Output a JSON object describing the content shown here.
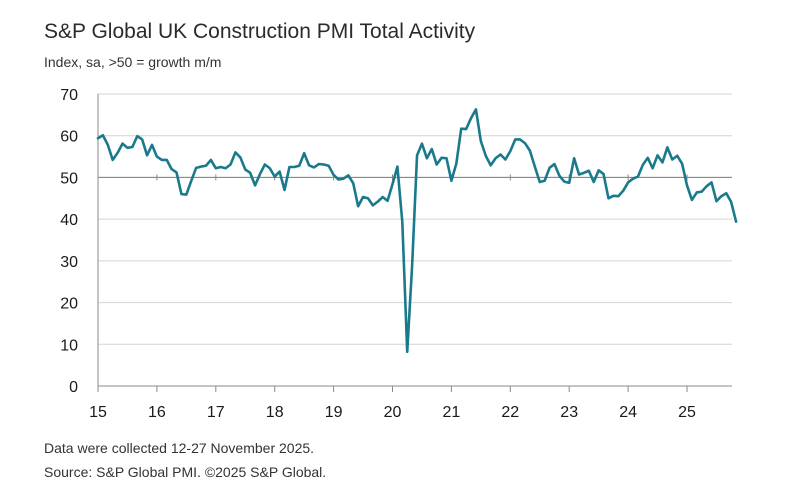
{
  "chart_data": {
    "type": "line",
    "title": "S&P Global UK Construction PMI Total Activity",
    "subtitle": "Index, sa, >50 = growth m/m",
    "xlabel": "",
    "ylabel": "",
    "ylim": [
      0,
      70
    ],
    "yticks": [
      0,
      10,
      20,
      30,
      40,
      50,
      60,
      70
    ],
    "xticks": [
      {
        "label": "15",
        "x": 2015
      },
      {
        "label": "16",
        "x": 2016
      },
      {
        "label": "17",
        "x": 2017
      },
      {
        "label": "18",
        "x": 2018
      },
      {
        "label": "19",
        "x": 2019
      },
      {
        "label": "20",
        "x": 2020
      },
      {
        "label": "21",
        "x": 2021
      },
      {
        "label": "22",
        "x": 2022
      },
      {
        "label": "23",
        "x": 2023
      },
      {
        "label": "24",
        "x": 2024
      },
      {
        "label": "25",
        "x": 2025
      }
    ],
    "reference_line": 50,
    "series": [
      {
        "name": "UK Construction PMI Total Activity",
        "color": "#1a7a8c",
        "x_start": 2015.0,
        "x_step_months": 1,
        "values": [
          59.4,
          60.1,
          57.8,
          54.2,
          55.9,
          58.1,
          57.1,
          57.3,
          59.9,
          59.1,
          55.3,
          57.8,
          55.0,
          54.2,
          54.2,
          52.0,
          51.2,
          46.0,
          45.9,
          49.2,
          52.3,
          52.6,
          52.8,
          54.2,
          52.2,
          52.5,
          52.2,
          53.1,
          56.0,
          54.8,
          51.9,
          51.1,
          48.1,
          50.8,
          53.1,
          52.2,
          50.2,
          51.4,
          47.0,
          52.5,
          52.5,
          52.8,
          55.8,
          52.9,
          52.4,
          53.2,
          53.1,
          52.8,
          50.6,
          49.5,
          49.7,
          50.5,
          48.6,
          43.1,
          45.3,
          45.0,
          43.3,
          44.2,
          45.3,
          44.4,
          48.4,
          52.6,
          39.3,
          8.2,
          28.9,
          55.3,
          58.1,
          54.6,
          56.8,
          53.1,
          54.7,
          54.6,
          49.2,
          53.3,
          61.7,
          61.6,
          64.2,
          66.3,
          58.7,
          55.2,
          52.9,
          54.6,
          55.5,
          54.3,
          56.3,
          59.1,
          59.1,
          58.2,
          56.4,
          52.6,
          48.9,
          49.2,
          52.3,
          53.2,
          50.4,
          49.0,
          48.7,
          54.6,
          50.7,
          51.1,
          51.6,
          48.9,
          51.7,
          50.8,
          45.0,
          45.6,
          45.5,
          46.8,
          48.8,
          49.7,
          50.2,
          53.0,
          54.7,
          52.2,
          55.3,
          53.6,
          57.2,
          54.3,
          55.2,
          53.3,
          48.1,
          44.6,
          46.4,
          46.6,
          47.9,
          48.8,
          44.3,
          45.5,
          46.2,
          44.1,
          39.4
        ]
      }
    ]
  },
  "footnotes": {
    "collection": "Data were collected 12-27 November 2025.",
    "source": "Source: S&P Global PMI. ©2025 S&P Global."
  }
}
